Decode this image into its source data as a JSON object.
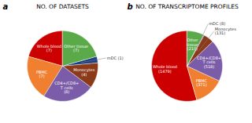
{
  "chart_data": [
    {
      "type": "pie",
      "title": "NO. OF DATASETS",
      "values": [
        7,
        7,
        8,
        4,
        1,
        7
      ],
      "value_labels": [
        "Whole blood\n(7)",
        "PBMC\n(7)",
        "CD4+/CD8+\nT cells\n(8)",
        "Monocytes\n(4)",
        "mDC (1)",
        "Other tissue\n(7)"
      ],
      "colors": [
        "#cc0000",
        "#f08030",
        "#7b5ca8",
        "#8b3a1a",
        "#1e3f80",
        "#5aaa4a"
      ],
      "data_labels": true,
      "annotations": [
        "a"
      ]
    },
    {
      "type": "pie",
      "title": "NO. OF TRANSCRIPTOME PROFILES",
      "values": [
        1479,
        371,
        518,
        131,
        8,
        210
      ],
      "value_labels": [
        "Whole blood\n(1479)",
        "PBMC\n(371)",
        "CD4+/CD8+\nT cells\n(518)",
        "Monocytes\n(131)",
        "mDC (8)",
        "Other\ntissue\n(210)"
      ],
      "colors": [
        "#cc0000",
        "#f08030",
        "#7b5ca8",
        "#8b3a1a",
        "#1e3f80",
        "#5aaa4a"
      ],
      "data_labels": true,
      "annotations": [
        "b"
      ]
    }
  ]
}
